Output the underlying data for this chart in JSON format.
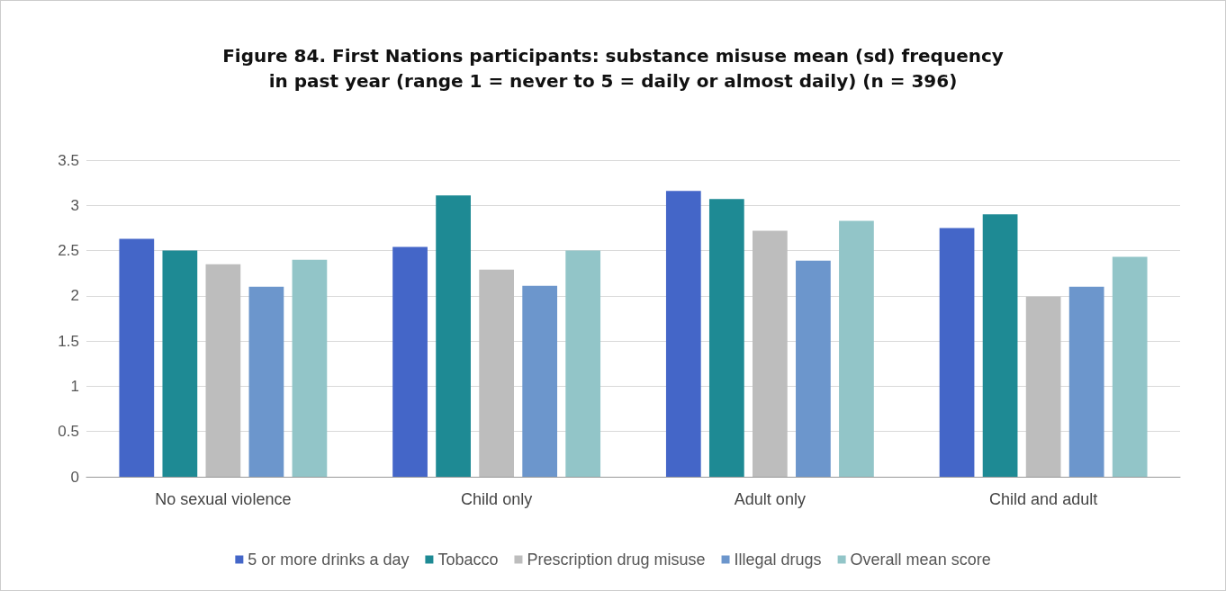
{
  "chart_data": {
    "type": "bar",
    "title": "Figure 84. First Nations participants: substance misuse mean (sd) frequency\nin past year (range 1 = never to 5 = daily or almost daily) (n = 396)",
    "categories": [
      "No sexual violence",
      "Child only",
      "Adult only",
      "Child and adult"
    ],
    "series": [
      {
        "name": "5 or more drinks a day",
        "color": "#4466c8",
        "values": [
          2.63,
          2.54,
          3.16,
          2.75
        ]
      },
      {
        "name": "Tobacco",
        "color": "#1e8a94",
        "values": [
          2.5,
          3.11,
          3.07,
          2.9
        ]
      },
      {
        "name": "Prescription drug misuse",
        "color": "#bdbdbd",
        "values": [
          2.35,
          2.29,
          2.72,
          1.99
        ]
      },
      {
        "name": "Illegal drugs",
        "color": "#6c96cc",
        "values": [
          2.1,
          2.11,
          2.39,
          2.1
        ]
      },
      {
        "name": "Overall mean score",
        "color": "#92c5c8",
        "values": [
          2.4,
          2.5,
          2.83,
          2.43
        ]
      }
    ],
    "ylim": [
      0,
      3.5
    ],
    "yticks": [
      0,
      0.5,
      1,
      1.5,
      2,
      2.5,
      3,
      3.5
    ],
    "grid": "y",
    "legend": "bottom"
  }
}
